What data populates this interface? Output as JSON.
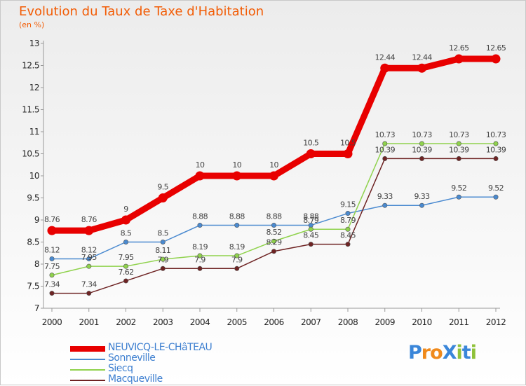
{
  "page": {
    "title": "Evolution du Taux de Taxe d'Habitation",
    "unit": "(en %)",
    "logo": "ProXiti"
  },
  "chart_data": {
    "type": "line",
    "x": [
      "2000",
      "2001",
      "2002",
      "2003",
      "2004",
      "2005",
      "2006",
      "2007",
      "2008",
      "2009",
      "2010",
      "2011",
      "2012"
    ],
    "ylim": [
      7,
      13
    ],
    "yticks": [
      "7",
      "7.5",
      "8",
      "8.5",
      "9",
      "9.5",
      "10",
      "10.5",
      "11",
      "11.5",
      "12",
      "12.5",
      "13"
    ],
    "grid": false,
    "legend_position": "bottom-left",
    "series": [
      {
        "name": "NEUVICQ-LE-CHâTEAU",
        "color": "#e80000",
        "values": [
          8.76,
          8.76,
          9,
          9.5,
          10,
          10,
          10,
          10.5,
          10.5,
          12.44,
          12.44,
          12.65,
          12.65
        ],
        "labels": [
          "8.76",
          "8.76",
          "9",
          "9.5",
          "10",
          "10",
          "10",
          "10.5",
          "10.5",
          "12.44",
          "12.44",
          "12.65",
          "12.65"
        ]
      },
      {
        "name": "Sonneville",
        "color": "#4a8ad0",
        "values": [
          8.12,
          8.12,
          8.5,
          8.5,
          8.88,
          8.88,
          8.88,
          8.88,
          9.15,
          9.33,
          9.33,
          9.52,
          9.52
        ],
        "labels": [
          "8.12",
          "8.12",
          "8.5",
          "8.5",
          "8.88",
          "8.88",
          "8.88",
          "8.88",
          "9.15",
          "9.33",
          "9.33",
          "9.52",
          "9.52"
        ]
      },
      {
        "name": "Siecq",
        "color": "#8fd24c",
        "values": [
          7.75,
          7.95,
          7.95,
          8.11,
          8.19,
          8.19,
          8.52,
          8.79,
          8.79,
          10.73,
          10.73,
          10.73,
          10.73
        ],
        "labels": [
          "7.75",
          "7.95",
          "7.95",
          "8.11",
          "8.19",
          "8.19",
          "8.52",
          "8.79",
          "8.79",
          "10.73",
          "10.73",
          "10.73",
          "10.73"
        ]
      },
      {
        "name": "Macqueville",
        "color": "#6e2323",
        "values": [
          7.34,
          7.34,
          7.62,
          7.9,
          7.9,
          7.9,
          8.29,
          8.45,
          8.45,
          10.39,
          10.39,
          10.39,
          10.39
        ],
        "labels": [
          "7.34",
          "7.34",
          "7.62",
          "7.9",
          "7.9",
          "7.9",
          "8.29",
          "8.45",
          "8.45",
          "10.39",
          "10.39",
          "10.39",
          "10.39"
        ]
      }
    ]
  }
}
